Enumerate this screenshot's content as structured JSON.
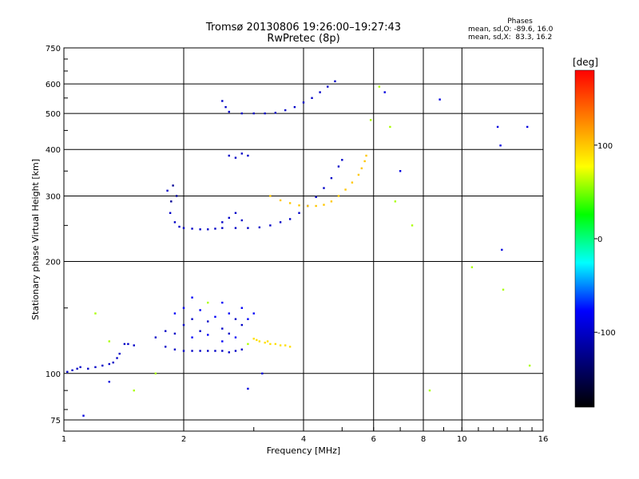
{
  "chart_data": {
    "type": "scatter",
    "title": "Tromsø 20130806 19:26:00–19:27:43",
    "subtitle": "RwPretec (8p)",
    "xlabel": "Frequency [MHz]",
    "ylabel": "Stationary phase Virtual Height [km]",
    "x_scale": "log",
    "y_scale": "log",
    "xlim": [
      1,
      16
    ],
    "ylim": [
      70,
      750
    ],
    "x_ticks": [
      1,
      2,
      4,
      6,
      8,
      10,
      16
    ],
    "x_tick_labels": [
      "1",
      "2",
      "4",
      "6",
      "8",
      "10",
      "16"
    ],
    "y_ticks": [
      75,
      100,
      200,
      300,
      400,
      500,
      600,
      750
    ],
    "y_tick_labels": [
      "75",
      "100",
      "200",
      "300",
      "400",
      "500",
      "600",
      "750"
    ],
    "grid": true,
    "grid_color": "#000000",
    "stats": {
      "header": "Phases",
      "line1": "mean, sd,O: -89.6, 16.0",
      "line2": "mean, sd,X:  83.3, 16.2"
    },
    "colorbar": {
      "label": "[deg]",
      "range": [
        -180,
        180
      ],
      "ticks": [
        100,
        0,
        -100
      ],
      "tick_labels": [
        "100",
        "0",
        "-100"
      ],
      "colors": [
        "#ff0000",
        "#ff8000",
        "#ffff00",
        "#00ff00",
        "#00ffff",
        "#0000ff",
        "#000080",
        "#000000"
      ]
    },
    "series": [
      {
        "trace": "low-F-layer",
        "phase_deg": -100,
        "points": [
          [
            1.02,
            101
          ],
          [
            1.05,
            102
          ],
          [
            1.08,
            103
          ],
          [
            1.1,
            104
          ],
          [
            1.15,
            103
          ],
          [
            1.2,
            104
          ],
          [
            1.25,
            105
          ],
          [
            1.3,
            106
          ],
          [
            1.33,
            107
          ],
          [
            1.36,
            110
          ],
          [
            1.38,
            113
          ],
          [
            1.42,
            120
          ],
          [
            1.45,
            120
          ],
          [
            1.5,
            119
          ],
          [
            1.7,
            125
          ],
          [
            1.8,
            118
          ],
          [
            1.9,
            116
          ],
          [
            2.0,
            115
          ],
          [
            2.1,
            115
          ],
          [
            2.2,
            115
          ],
          [
            2.3,
            115
          ],
          [
            2.4,
            115
          ],
          [
            2.5,
            115
          ],
          [
            2.6,
            114
          ],
          [
            2.7,
            115
          ],
          [
            2.8,
            116
          ],
          [
            1.8,
            130
          ],
          [
            1.9,
            128
          ],
          [
            2.0,
            135
          ],
          [
            2.1,
            140
          ],
          [
            2.2,
            130
          ],
          [
            2.3,
            138
          ],
          [
            2.5,
            132
          ],
          [
            2.6,
            128
          ],
          [
            2.7,
            140
          ],
          [
            2.8,
            135
          ]
        ]
      },
      {
        "trace": "low-F-layer-scatter",
        "phase_deg": -80,
        "points": [
          [
            1.9,
            145
          ],
          [
            2.0,
            150
          ],
          [
            2.1,
            160
          ],
          [
            2.2,
            148
          ],
          [
            2.4,
            142
          ],
          [
            2.5,
            155
          ],
          [
            2.6,
            145
          ],
          [
            2.8,
            150
          ],
          [
            2.9,
            140
          ],
          [
            3.0,
            145
          ],
          [
            2.1,
            125
          ],
          [
            2.3,
            127
          ],
          [
            2.5,
            122
          ],
          [
            2.7,
            125
          ]
        ]
      },
      {
        "trace": "low-F-layer-X",
        "phase_deg": 90,
        "points": [
          [
            3.0,
            124
          ],
          [
            3.1,
            122
          ],
          [
            3.2,
            121
          ],
          [
            3.3,
            120
          ],
          [
            3.4,
            120
          ],
          [
            3.5,
            119
          ],
          [
            3.6,
            119
          ],
          [
            3.7,
            118
          ],
          [
            3.05,
            123
          ],
          [
            3.25,
            122
          ]
        ]
      },
      {
        "trace": "F2-O",
        "phase_deg": -100,
        "points": [
          [
            1.82,
            310
          ],
          [
            1.85,
            270
          ],
          [
            1.9,
            255
          ],
          [
            1.95,
            248
          ],
          [
            2.0,
            246
          ],
          [
            2.1,
            245
          ],
          [
            2.2,
            244
          ],
          [
            2.3,
            244
          ],
          [
            2.4,
            245
          ],
          [
            2.5,
            246
          ],
          [
            2.7,
            246
          ],
          [
            2.9,
            246
          ],
          [
            3.1,
            247
          ],
          [
            3.3,
            250
          ],
          [
            3.5,
            255
          ],
          [
            3.7,
            260
          ],
          [
            3.9,
            270
          ],
          [
            4.1,
            282
          ],
          [
            4.3,
            298
          ],
          [
            4.5,
            315
          ],
          [
            4.7,
            335
          ],
          [
            4.9,
            360
          ],
          [
            5.0,
            375
          ],
          [
            2.5,
            255
          ],
          [
            2.6,
            262
          ],
          [
            2.8,
            258
          ],
          [
            2.7,
            270
          ]
        ]
      },
      {
        "trace": "F2-O-nose",
        "phase_deg": -120,
        "points": [
          [
            1.86,
            290
          ],
          [
            1.92,
            300
          ],
          [
            1.88,
            320
          ]
        ]
      },
      {
        "trace": "F2-X",
        "phase_deg": 100,
        "points": [
          [
            3.3,
            300
          ],
          [
            3.5,
            292
          ],
          [
            3.7,
            287
          ],
          [
            3.9,
            283
          ],
          [
            4.1,
            282
          ],
          [
            4.3,
            282
          ],
          [
            4.5,
            284
          ],
          [
            4.7,
            290
          ],
          [
            4.9,
            300
          ],
          [
            5.1,
            312
          ],
          [
            5.3,
            326
          ],
          [
            5.5,
            342
          ],
          [
            5.6,
            356
          ],
          [
            5.7,
            372
          ],
          [
            5.75,
            385
          ]
        ]
      },
      {
        "trace": "multi-hop-O",
        "phase_deg": -100,
        "points": [
          [
            2.5,
            540
          ],
          [
            2.55,
            520
          ],
          [
            2.6,
            505
          ],
          [
            2.8,
            500
          ],
          [
            3.0,
            500
          ],
          [
            3.2,
            500
          ],
          [
            3.4,
            502
          ],
          [
            3.6,
            510
          ],
          [
            3.8,
            520
          ],
          [
            4.0,
            535
          ],
          [
            4.2,
            550
          ],
          [
            4.4,
            570
          ],
          [
            4.6,
            590
          ],
          [
            4.8,
            610
          ],
          [
            2.6,
            385
          ],
          [
            2.7,
            380
          ],
          [
            2.8,
            390
          ],
          [
            2.9,
            385
          ]
        ]
      },
      {
        "trace": "scattered-echoes",
        "phase_deg": 60,
        "points": [
          [
            6.2,
            590
          ],
          [
            6.6,
            460
          ],
          [
            6.8,
            290
          ],
          [
            7.5,
            250
          ],
          [
            8.3,
            90
          ],
          [
            10.6,
            193
          ],
          [
            12.7,
            168
          ],
          [
            14.8,
            105
          ],
          [
            5.9,
            480
          ],
          [
            1.2,
            145
          ],
          [
            1.3,
            122
          ],
          [
            1.5,
            90
          ],
          [
            1.7,
            100
          ],
          [
            2.3,
            155
          ],
          [
            2.9,
            120
          ]
        ]
      },
      {
        "trace": "scattered-echoes-cool",
        "phase_deg": -90,
        "points": [
          [
            6.4,
            570
          ],
          [
            7.0,
            350
          ],
          [
            8.8,
            545
          ],
          [
            12.3,
            460
          ],
          [
            12.5,
            410
          ],
          [
            12.6,
            215
          ],
          [
            14.6,
            460
          ],
          [
            2.9,
            91
          ],
          [
            3.15,
            100
          ],
          [
            1.12,
            77
          ],
          [
            1.3,
            95
          ]
        ]
      }
    ]
  }
}
